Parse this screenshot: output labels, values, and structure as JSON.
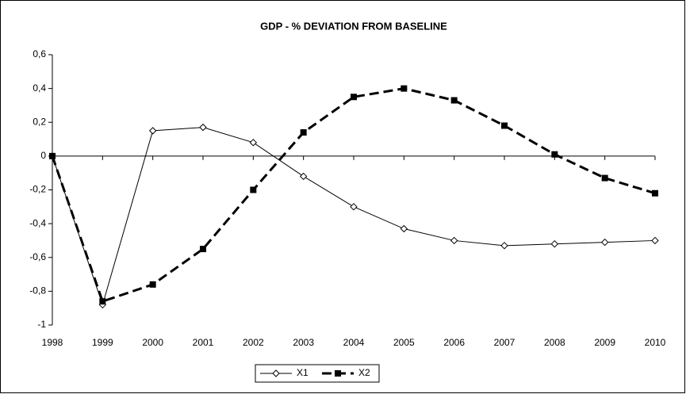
{
  "chart_data": {
    "type": "line",
    "title": "GDP - % DEVIATION FROM BASELINE",
    "categories": [
      "1998",
      "1999",
      "2000",
      "2001",
      "2002",
      "2003",
      "2004",
      "2005",
      "2006",
      "2007",
      "2008",
      "2009",
      "2010"
    ],
    "series": [
      {
        "name": "X1",
        "color": "#000000",
        "line_style": "solid",
        "marker": "diamond",
        "values": [
          0,
          -0.88,
          0.15,
          0.17,
          0.08,
          -0.12,
          -0.3,
          -0.43,
          -0.5,
          -0.53,
          -0.52,
          -0.51,
          -0.5
        ]
      },
      {
        "name": "X2",
        "color": "#000000",
        "line_style": "dashed",
        "marker": "square",
        "values": [
          0,
          -0.86,
          -0.76,
          -0.55,
          -0.2,
          0.14,
          0.35,
          0.4,
          0.33,
          0.18,
          0.01,
          -0.13,
          -0.22
        ]
      }
    ],
    "ylim": [
      -1,
      0.6
    ],
    "yticks": [
      -1,
      {
        "value": -0.8,
        "label": "-0,8"
      },
      {
        "value": -0.6,
        "label": "-0,6"
      },
      {
        "value": -0.4,
        "label": "-0,4"
      },
      {
        "value": -0.2,
        "label": "-0,2"
      },
      0,
      {
        "value": 0.2,
        "label": "0,2"
      },
      {
        "value": 0.4,
        "label": "0,4"
      },
      {
        "value": 0.6,
        "label": "0,6"
      }
    ],
    "grid": false,
    "legend": "bottom"
  }
}
